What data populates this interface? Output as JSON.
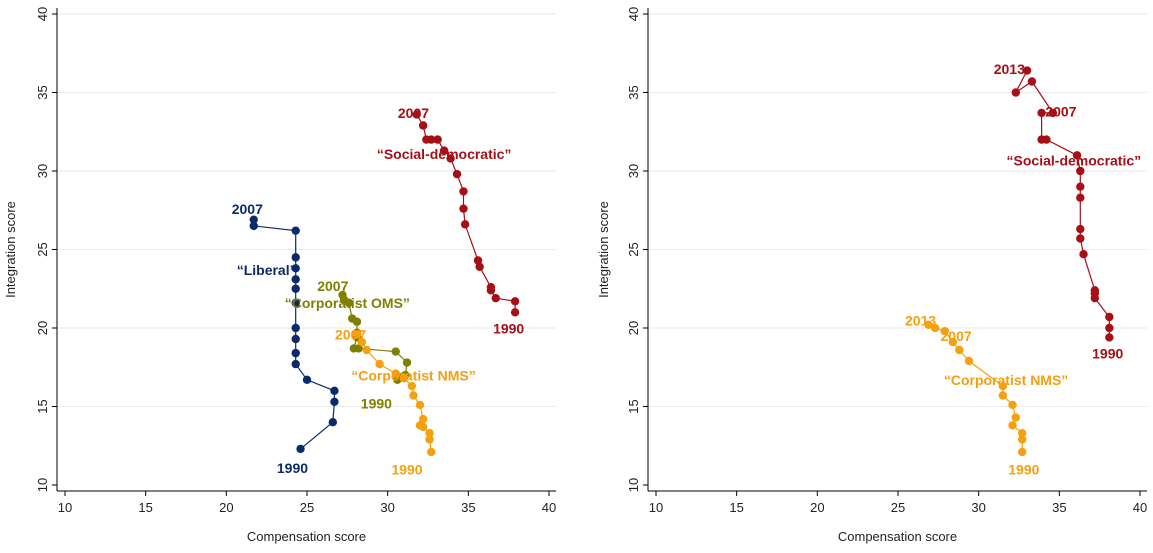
{
  "chart_data": [
    {
      "type": "line",
      "xlabel": "Compensation score",
      "ylabel": "Integration score",
      "xlim": [
        10,
        40
      ],
      "ylim": [
        10,
        40
      ],
      "xticks": [
        10,
        15,
        20,
        25,
        30,
        35,
        40
      ],
      "yticks": [
        10,
        15,
        20,
        25,
        30,
        35,
        40
      ],
      "grid": "horizontal",
      "series": [
        {
          "name": "“Social-democratic”",
          "color": "#a50f15",
          "points": [
            [
              37.9,
              21.0
            ],
            [
              37.9,
              21.7
            ],
            [
              36.7,
              21.9
            ],
            [
              36.4,
              22.4
            ],
            [
              36.4,
              22.6
            ],
            [
              35.7,
              23.9
            ],
            [
              35.6,
              24.3
            ],
            [
              34.8,
              26.6
            ],
            [
              34.7,
              27.6
            ],
            [
              34.7,
              28.7
            ],
            [
              34.3,
              29.8
            ],
            [
              33.9,
              30.8
            ],
            [
              33.5,
              31.3
            ],
            [
              33.1,
              32.0
            ],
            [
              32.7,
              32.0
            ],
            [
              32.4,
              32.0
            ],
            [
              32.2,
              32.9
            ],
            [
              31.8,
              33.6
            ]
          ],
          "labels": [
            {
              "text": "2007",
              "x": 31.6,
              "y": 33.6
            },
            {
              "text": "“Social-democratic”",
              "x": 33.5,
              "y": 31.0
            },
            {
              "text": "1990",
              "x": 37.5,
              "y": 19.9
            }
          ]
        },
        {
          "name": "“Liberal”",
          "color": "#0c2a6b",
          "points": [
            [
              24.6,
              12.3
            ],
            [
              26.6,
              14.0
            ],
            [
              26.7,
              15.3
            ],
            [
              26.7,
              16.0
            ],
            [
              25.0,
              16.7
            ],
            [
              24.3,
              17.7
            ],
            [
              24.3,
              18.4
            ],
            [
              24.3,
              19.3
            ],
            [
              24.3,
              20.0
            ],
            [
              24.3,
              21.6
            ],
            [
              24.3,
              22.5
            ],
            [
              24.3,
              23.1
            ],
            [
              24.3,
              23.8
            ],
            [
              24.3,
              24.5
            ],
            [
              24.3,
              26.2
            ],
            [
              21.7,
              26.5
            ],
            [
              21.7,
              26.9
            ]
          ],
          "labels": [
            {
              "text": "2007",
              "x": 21.3,
              "y": 27.5
            },
            {
              "text": "“Liberal”",
              "x": 22.5,
              "y": 23.6
            },
            {
              "text": "1990",
              "x": 24.1,
              "y": 11.0
            }
          ]
        },
        {
          "name": "“Corporatist OMS”",
          "color": "#7f7f00",
          "points": [
            [
              30.6,
              16.7
            ],
            [
              30.9,
              16.9
            ],
            [
              31.1,
              17.0
            ],
            [
              31.2,
              17.8
            ],
            [
              30.5,
              18.5
            ],
            [
              28.2,
              18.7
            ],
            [
              27.9,
              18.7
            ],
            [
              28.1,
              19.4
            ],
            [
              28.1,
              19.7
            ],
            [
              28.1,
              20.4
            ],
            [
              27.8,
              20.6
            ],
            [
              27.6,
              21.6
            ],
            [
              27.3,
              21.8
            ],
            [
              27.2,
              22.1
            ]
          ],
          "labels": [
            {
              "text": "2007",
              "x": 26.6,
              "y": 22.6
            },
            {
              "text": "“Corporatist OMS”",
              "x": 27.5,
              "y": 21.5
            },
            {
              "text": "1990",
              "x": 29.3,
              "y": 15.1
            }
          ]
        },
        {
          "name": "“Corporatist NMS”",
          "color": "#f5a00f",
          "points": [
            [
              32.7,
              12.1
            ],
            [
              32.6,
              12.9
            ],
            [
              32.6,
              13.3
            ],
            [
              32.2,
              13.7
            ],
            [
              32.0,
              13.8
            ],
            [
              32.2,
              14.2
            ],
            [
              32.0,
              15.1
            ],
            [
              31.6,
              15.7
            ],
            [
              31.5,
              16.3
            ],
            [
              31.0,
              16.8
            ],
            [
              30.5,
              17.1
            ],
            [
              29.5,
              17.7
            ],
            [
              28.7,
              18.6
            ],
            [
              28.4,
              19.1
            ],
            [
              28.1,
              19.6
            ]
          ],
          "labels": [
            {
              "text": "2007",
              "x": 27.7,
              "y": 19.5
            },
            {
              "text": "“Corporatist NMS”",
              "x": 31.6,
              "y": 16.9
            },
            {
              "text": "1990",
              "x": 31.2,
              "y": 10.9
            }
          ]
        }
      ]
    },
    {
      "type": "line",
      "xlabel": "Compensation score",
      "ylabel": "Integration score",
      "xlim": [
        10,
        40
      ],
      "ylim": [
        10,
        40
      ],
      "xticks": [
        10,
        15,
        20,
        25,
        30,
        35,
        40
      ],
      "yticks": [
        10,
        15,
        20,
        25,
        30,
        35,
        40
      ],
      "grid": "horizontal",
      "series": [
        {
          "name": "“Social-democratic”",
          "color": "#a50f15",
          "points": [
            [
              38.1,
              19.4
            ],
            [
              38.1,
              20.0
            ],
            [
              38.1,
              20.7
            ],
            [
              37.2,
              21.9
            ],
            [
              37.2,
              22.2
            ],
            [
              37.2,
              22.4
            ],
            [
              36.5,
              24.7
            ],
            [
              36.3,
              25.7
            ],
            [
              36.3,
              26.3
            ],
            [
              36.3,
              28.3
            ],
            [
              36.3,
              29.0
            ],
            [
              36.3,
              30.0
            ],
            [
              36.1,
              31.0
            ],
            [
              34.2,
              32.0
            ],
            [
              33.9,
              32.0
            ],
            [
              33.9,
              33.7
            ],
            [
              34.6,
              33.7
            ],
            [
              33.3,
              35.7
            ],
            [
              32.3,
              35.0
            ],
            [
              33.0,
              36.4
            ]
          ],
          "labels": [
            {
              "text": "2013",
              "x": 31.9,
              "y": 36.4
            },
            {
              "text": "2007",
              "x": 35.1,
              "y": 33.7
            },
            {
              "text": "“Social-democratic”",
              "x": 35.9,
              "y": 30.6
            },
            {
              "text": "1990",
              "x": 38.0,
              "y": 18.3
            }
          ]
        },
        {
          "name": "“Corporatist NMS”",
          "color": "#f5a00f",
          "points": [
            [
              32.7,
              12.1
            ],
            [
              32.7,
              12.9
            ],
            [
              32.7,
              13.3
            ],
            [
              32.1,
              13.8
            ],
            [
              32.3,
              14.3
            ],
            [
              32.1,
              15.1
            ],
            [
              31.5,
              15.7
            ],
            [
              31.5,
              16.3
            ],
            [
              29.4,
              17.9
            ],
            [
              28.8,
              18.6
            ],
            [
              28.4,
              19.1
            ],
            [
              27.9,
              19.8
            ],
            [
              27.3,
              20.0
            ],
            [
              26.9,
              20.2
            ]
          ],
          "labels": [
            {
              "text": "2013",
              "x": 26.4,
              "y": 20.4
            },
            {
              "text": "2007",
              "x": 28.6,
              "y": 19.4
            },
            {
              "text": "“Corporatist NMS”",
              "x": 31.7,
              "y": 16.6
            },
            {
              "text": "1990",
              "x": 32.8,
              "y": 10.9
            }
          ]
        }
      ]
    }
  ]
}
